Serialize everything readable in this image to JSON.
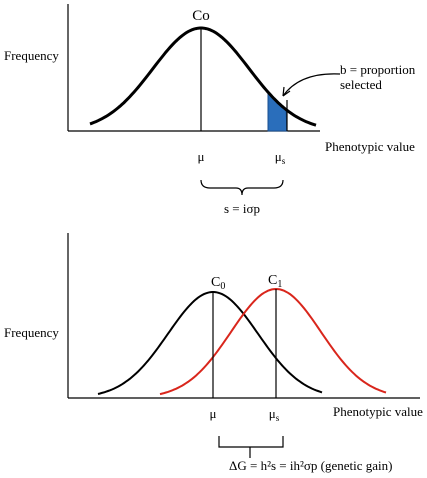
{
  "top": {
    "curve_label": "Co",
    "y_label": "Frequency",
    "annotation": [
      "b = proportion",
      "selected"
    ],
    "x_label": "Phenotypic value",
    "mean": "μ",
    "selected_mean": {
      "base": "μ",
      "sub": "s"
    },
    "difference": "s = iσp"
  },
  "bottom": {
    "y_label": "Frequency",
    "curve0_label": {
      "base": "C",
      "sub": "0"
    },
    "curve1_label": {
      "base": "C",
      "sub": "1"
    },
    "x_label": "Phenotypic value",
    "mean": "μ",
    "selected_mean": {
      "base": "μ",
      "sub": "s"
    },
    "gain": "ΔG = h²s = ih²σp (genetic gain)"
  }
}
